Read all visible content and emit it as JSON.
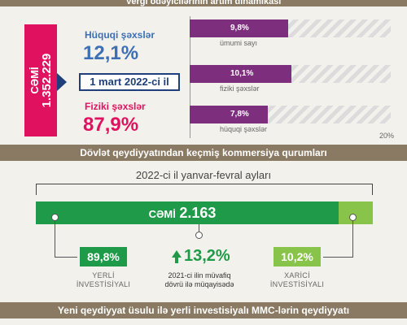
{
  "top_banner": {
    "title": "Vergi ödəyicilərinin artım dinamikası"
  },
  "total": {
    "label": "CƏMİ",
    "value": "1.352.229"
  },
  "date": {
    "label": "1 mart 2022-ci il"
  },
  "shares": {
    "juridical_label": "Hüquqi şəxslər",
    "juridical_value": "12,1%",
    "physical_label": "Fiziki şəxslər",
    "physical_value": "87,9%"
  },
  "growth_bars": {
    "rows": [
      {
        "value_label": "9,8%",
        "caption": "ümumi sayı",
        "value": 9.8
      },
      {
        "value_label": "10,1%",
        "caption": "fiziki şəxslər",
        "value": 10.1
      },
      {
        "value_label": "7,8%",
        "caption": "hüquqi şəxslər",
        "value": 7.8
      }
    ],
    "axis_max_label": "20%",
    "axis_max": 20,
    "fill_color": "#7d2e7c"
  },
  "registration_banner": {
    "title": "Dövlət qeydiyyatından keçmiş kommersiya qurumları"
  },
  "registration": {
    "period": "2022-ci il yanvar-fevral ayları",
    "total_label": "CƏMİ",
    "total_value": "2.163",
    "local_share": 89.8,
    "local_value": "89,8%",
    "local_caption_1": "YERLİ",
    "local_caption_2": "İNVESTİSİYALI",
    "foreign_value": "10,2%",
    "foreign_caption_1": "XARİCİ",
    "foreign_caption_2": "İNVESTİSİYALI",
    "change_value": "13,2%",
    "change_caption_1": "2021-ci ilin müvafiq",
    "change_caption_2": "dövrü ilə müqayisədə",
    "colors": {
      "local": "#1e9a48",
      "foreign": "#88c34a"
    }
  },
  "bottom_banner": {
    "title": "Yeni qeydiyyat üsulu ilə yerli investisiyalı MMC-lərin qeydiyyatı"
  }
}
